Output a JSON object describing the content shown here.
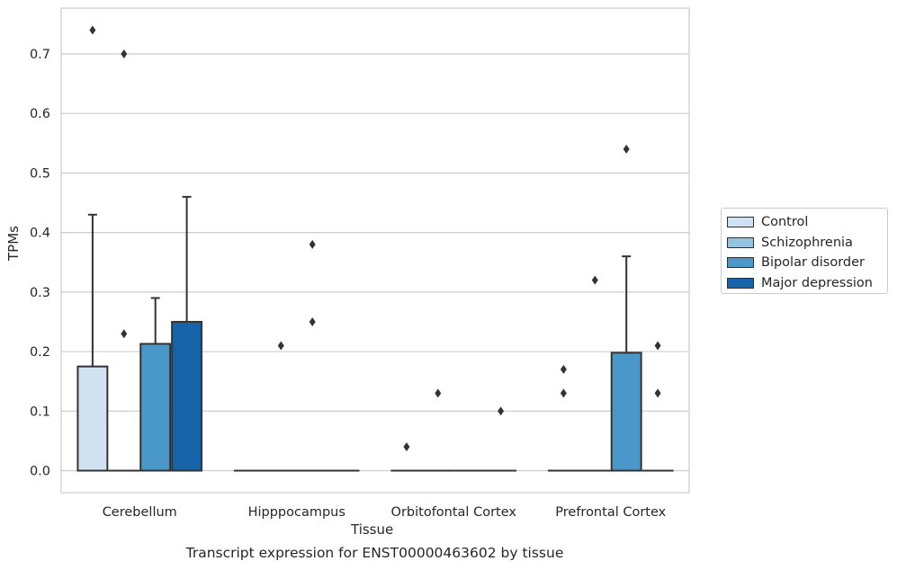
{
  "chart_data": {
    "type": "box",
    "xlabel": "Tissue",
    "ylabel": "TPMs",
    "caption": "Transcript expression for ENST00000463602 by tissue",
    "ylim": [
      -0.037,
      0.777
    ],
    "yticks": [
      "0.0",
      "0.1",
      "0.2",
      "0.3",
      "0.4",
      "0.5",
      "0.6",
      "0.7"
    ],
    "grid": true,
    "legend_position": "right",
    "categories": [
      "Cerebellum",
      "Hipppocampus",
      "Orbitofontal Cortex",
      "Prefrontal Cortex"
    ],
    "series": [
      {
        "name": "Control",
        "color": "#d0e1f2",
        "boxes": [
          {
            "q1": 0.0,
            "median": 0.0,
            "q3": 0.175,
            "whisker_low": 0.0,
            "whisker_high": 0.43,
            "outliers": [
              0.74
            ]
          },
          {
            "q1": 0.0,
            "median": 0.0,
            "q3": 0.0,
            "whisker_low": 0.0,
            "whisker_high": 0.0,
            "outliers": []
          },
          {
            "q1": 0.0,
            "median": 0.0,
            "q3": 0.0,
            "whisker_low": 0.0,
            "whisker_high": 0.0,
            "outliers": [
              0.04
            ]
          },
          {
            "q1": 0.0,
            "median": 0.0,
            "q3": 0.0,
            "whisker_low": 0.0,
            "whisker_high": 0.0,
            "outliers": [
              0.13,
              0.17
            ]
          }
        ]
      },
      {
        "name": "Schizophrenia",
        "color": "#94c4df",
        "boxes": [
          {
            "q1": 0.0,
            "median": 0.0,
            "q3": 0.0,
            "whisker_low": 0.0,
            "whisker_high": 0.0,
            "outliers": [
              0.23,
              0.7
            ]
          },
          {
            "q1": 0.0,
            "median": 0.0,
            "q3": 0.0,
            "whisker_low": 0.0,
            "whisker_high": 0.0,
            "outliers": [
              0.21
            ]
          },
          {
            "q1": 0.0,
            "median": 0.0,
            "q3": 0.0,
            "whisker_low": 0.0,
            "whisker_high": 0.0,
            "outliers": [
              0.13
            ]
          },
          {
            "q1": 0.0,
            "median": 0.0,
            "q3": 0.0,
            "whisker_low": 0.0,
            "whisker_high": 0.0,
            "outliers": [
              0.32
            ]
          }
        ]
      },
      {
        "name": "Bipolar disorder",
        "color": "#4a98c9",
        "boxes": [
          {
            "q1": 0.0,
            "median": 0.0,
            "q3": 0.213,
            "whisker_low": 0.0,
            "whisker_high": 0.29,
            "outliers": []
          },
          {
            "q1": 0.0,
            "median": 0.0,
            "q3": 0.0,
            "whisker_low": 0.0,
            "whisker_high": 0.0,
            "outliers": [
              0.25,
              0.38
            ]
          },
          {
            "q1": 0.0,
            "median": 0.0,
            "q3": 0.0,
            "whisker_low": 0.0,
            "whisker_high": 0.0,
            "outliers": []
          },
          {
            "q1": 0.0,
            "median": 0.0,
            "q3": 0.198,
            "whisker_low": 0.0,
            "whisker_high": 0.36,
            "outliers": [
              0.54
            ]
          }
        ]
      },
      {
        "name": "Major depression",
        "color": "#1764ab",
        "boxes": [
          {
            "q1": 0.0,
            "median": 0.0,
            "q3": 0.25,
            "whisker_low": 0.0,
            "whisker_high": 0.46,
            "outliers": []
          },
          {
            "q1": 0.0,
            "median": 0.0,
            "q3": 0.0,
            "whisker_low": 0.0,
            "whisker_high": 0.0,
            "outliers": []
          },
          {
            "q1": 0.0,
            "median": 0.0,
            "q3": 0.0,
            "whisker_low": 0.0,
            "whisker_high": 0.0,
            "outliers": [
              0.1
            ]
          },
          {
            "q1": 0.0,
            "median": 0.0,
            "q3": 0.0,
            "whisker_low": 0.0,
            "whisker_high": 0.0,
            "outliers": [
              0.13,
              0.21
            ]
          }
        ]
      }
    ]
  }
}
